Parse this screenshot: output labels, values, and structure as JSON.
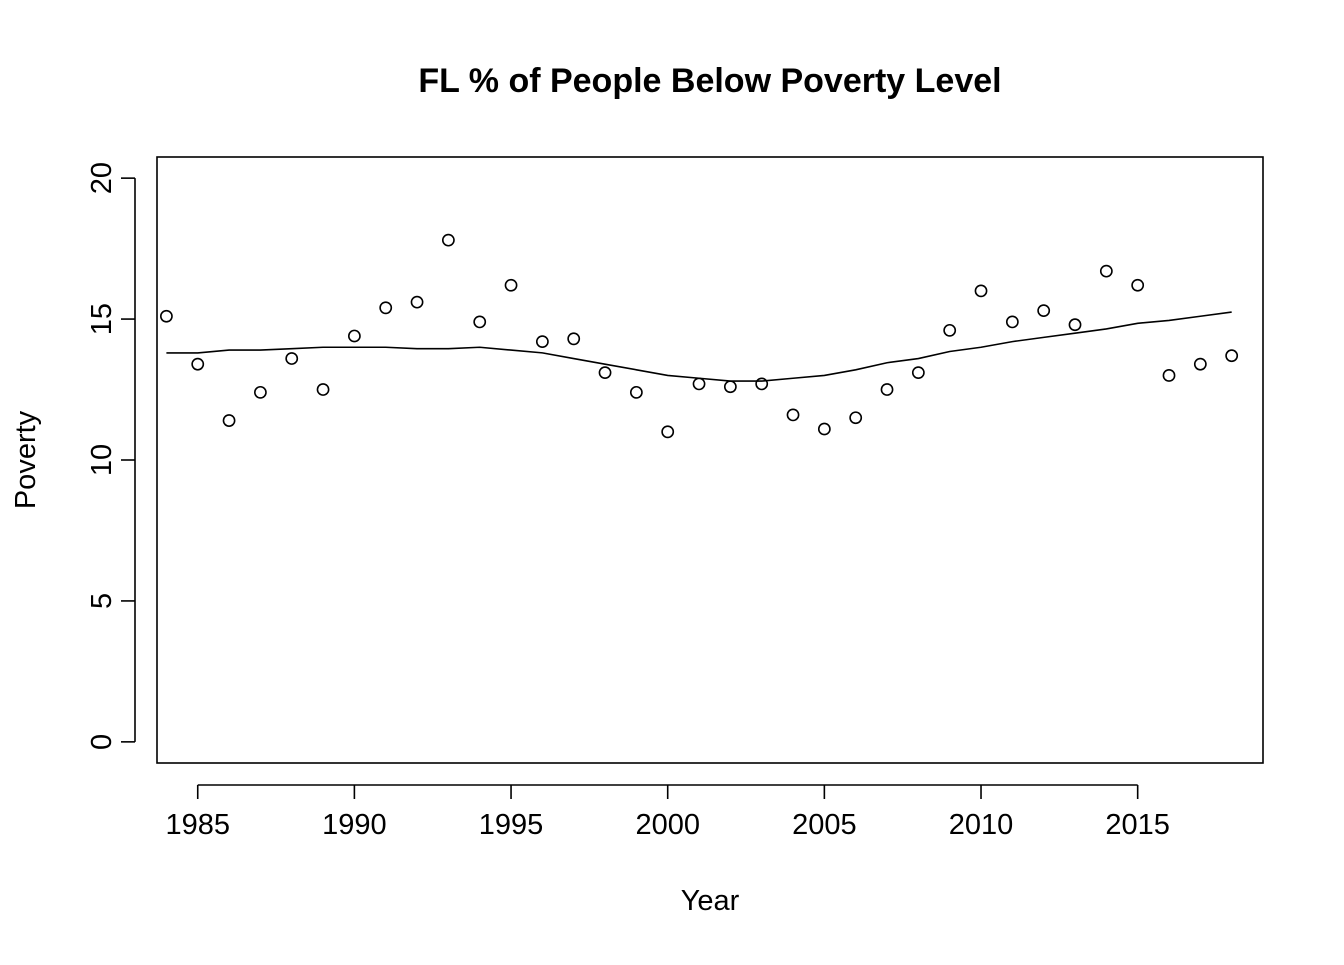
{
  "chart_data": {
    "type": "scatter",
    "title": "FL % of People Below Poverty Level",
    "xlabel": "Year",
    "ylabel": "Poverty",
    "xlim": [
      1983.7,
      2019.0
    ],
    "ylim": [
      -0.75,
      20.75
    ],
    "x_ticks": [
      1985,
      1990,
      1995,
      2000,
      2005,
      2010,
      2015
    ],
    "y_ticks": [
      0,
      5,
      10,
      15,
      20
    ],
    "x_tick_labels": [
      "1985",
      "1990",
      "1995",
      "2000",
      "2005",
      "2010",
      "2015"
    ],
    "y_tick_labels": [
      "0",
      "5",
      "10",
      "15",
      "20"
    ],
    "grid": false,
    "legend": "none",
    "series": [
      {
        "type": "scatter",
        "marker": "open-circle",
        "points": [
          {
            "x": 1984,
            "y": 15.1
          },
          {
            "x": 1985,
            "y": 13.4
          },
          {
            "x": 1986,
            "y": 11.4
          },
          {
            "x": 1987,
            "y": 12.4
          },
          {
            "x": 1988,
            "y": 13.6
          },
          {
            "x": 1989,
            "y": 12.5
          },
          {
            "x": 1990,
            "y": 14.4
          },
          {
            "x": 1991,
            "y": 15.4
          },
          {
            "x": 1992,
            "y": 15.6
          },
          {
            "x": 1993,
            "y": 17.8
          },
          {
            "x": 1994,
            "y": 14.9
          },
          {
            "x": 1995,
            "y": 16.2
          },
          {
            "x": 1996,
            "y": 14.2
          },
          {
            "x": 1997,
            "y": 14.3
          },
          {
            "x": 1998,
            "y": 13.1
          },
          {
            "x": 1999,
            "y": 12.4
          },
          {
            "x": 2000,
            "y": 11.0
          },
          {
            "x": 2001,
            "y": 12.7
          },
          {
            "x": 2002,
            "y": 12.6
          },
          {
            "x": 2003,
            "y": 12.7
          },
          {
            "x": 2004,
            "y": 11.6
          },
          {
            "x": 2005,
            "y": 11.1
          },
          {
            "x": 2006,
            "y": 11.5
          },
          {
            "x": 2007,
            "y": 12.5
          },
          {
            "x": 2008,
            "y": 13.1
          },
          {
            "x": 2009,
            "y": 14.6
          },
          {
            "x": 2010,
            "y": 16.0
          },
          {
            "x": 2011,
            "y": 14.9
          },
          {
            "x": 2012,
            "y": 15.3
          },
          {
            "x": 2013,
            "y": 14.8
          },
          {
            "x": 2014,
            "y": 16.7
          },
          {
            "x": 2015,
            "y": 16.2
          },
          {
            "x": 2016,
            "y": 13.0
          },
          {
            "x": 2017,
            "y": 13.4
          },
          {
            "x": 2018,
            "y": 13.7
          }
        ]
      },
      {
        "type": "line",
        "points": [
          {
            "x": 1984,
            "y": 13.8
          },
          {
            "x": 1985,
            "y": 13.8
          },
          {
            "x": 1986,
            "y": 13.9
          },
          {
            "x": 1987,
            "y": 13.9
          },
          {
            "x": 1988,
            "y": 13.95
          },
          {
            "x": 1989,
            "y": 14.0
          },
          {
            "x": 1990,
            "y": 14.0
          },
          {
            "x": 1991,
            "y": 14.0
          },
          {
            "x": 1992,
            "y": 13.95
          },
          {
            "x": 1993,
            "y": 13.95
          },
          {
            "x": 1994,
            "y": 14.0
          },
          {
            "x": 1995,
            "y": 13.9
          },
          {
            "x": 1996,
            "y": 13.8
          },
          {
            "x": 1997,
            "y": 13.6
          },
          {
            "x": 1998,
            "y": 13.4
          },
          {
            "x": 1999,
            "y": 13.2
          },
          {
            "x": 2000,
            "y": 13.0
          },
          {
            "x": 2001,
            "y": 12.9
          },
          {
            "x": 2002,
            "y": 12.8
          },
          {
            "x": 2003,
            "y": 12.8
          },
          {
            "x": 2004,
            "y": 12.9
          },
          {
            "x": 2005,
            "y": 13.0
          },
          {
            "x": 2006,
            "y": 13.2
          },
          {
            "x": 2007,
            "y": 13.45
          },
          {
            "x": 2008,
            "y": 13.6
          },
          {
            "x": 2009,
            "y": 13.85
          },
          {
            "x": 2010,
            "y": 14.0
          },
          {
            "x": 2011,
            "y": 14.2
          },
          {
            "x": 2012,
            "y": 14.35
          },
          {
            "x": 2013,
            "y": 14.5
          },
          {
            "x": 2014,
            "y": 14.65
          },
          {
            "x": 2015,
            "y": 14.85
          },
          {
            "x": 2016,
            "y": 14.95
          },
          {
            "x": 2017,
            "y": 15.1
          },
          {
            "x": 2018,
            "y": 15.25
          }
        ]
      }
    ]
  }
}
